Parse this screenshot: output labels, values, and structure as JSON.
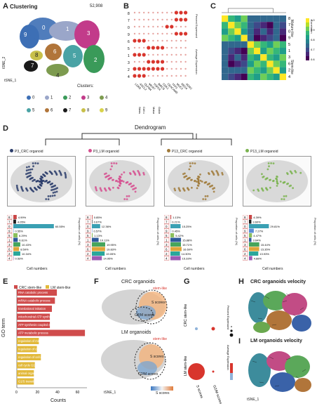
{
  "panelA": {
    "letter": "A",
    "title": "Clustering",
    "count": "52,908",
    "xaxis": "tSNE_1",
    "yaxis": "tSNE_2",
    "legend_title": "Clusters:",
    "clusters": [
      {
        "id": "0",
        "color": "#3d6fb5"
      },
      {
        "id": "1",
        "color": "#9aa6c9"
      },
      {
        "id": "2",
        "color": "#3a9a59"
      },
      {
        "id": "3",
        "color": "#c23b8a"
      },
      {
        "id": "4",
        "color": "#7d9b4f"
      },
      {
        "id": "5",
        "color": "#4aa3a5"
      },
      {
        "id": "6",
        "color": "#b1753a"
      },
      {
        "id": "7",
        "color": "#1a1a1a"
      },
      {
        "id": "8",
        "color": "#c8c04a"
      },
      {
        "id": "9",
        "color": "#d9d34a"
      }
    ]
  },
  "panelB": {
    "letter": "B",
    "rows": [
      "8",
      "7",
      "0",
      "9",
      "6",
      "5",
      "1",
      "3",
      "2",
      "4"
    ],
    "genes": [
      "LGR5",
      "ASCL2",
      "OLFM4",
      "MKI67",
      "TOP2A",
      "BIRC5",
      "CDK1",
      "CEACAM5",
      "TFF3",
      "MUC2",
      "REG4",
      "AGR2"
    ],
    "groups": [
      "Stem/TA-like",
      "Cell cycle",
      "Mature enterocyte",
      "Goblet cell"
    ],
    "legend_pct": "Percent Expressed",
    "legend_avg": "Average Expression"
  },
  "panelC": {
    "letter": "C",
    "rows": [
      "8",
      "7",
      "0",
      "9",
      "5",
      "1",
      "3",
      "6",
      "2",
      "4"
    ],
    "groups": [
      "Mature-like",
      "Stem-like"
    ],
    "scale_label": "Correlation",
    "scale_ticks": [
      "1.0",
      "0.9",
      "0.8",
      "0.7",
      "0.6"
    ]
  },
  "panelD": {
    "letter": "D",
    "title": "Dendrogram",
    "samples": [
      {
        "name": "P3_CRC organoid",
        "color": "#2b3d6b"
      },
      {
        "name": "P3_LM organoid",
        "color": "#d64f8f"
      },
      {
        "name": "P13_CRC organoid",
        "color": "#a07a3a"
      },
      {
        "name": "P13_LM organoid",
        "color": "#7ab34f"
      }
    ],
    "umap_x": "tSNE_1",
    "umap_y": "tSNE_2",
    "bar_xlabel": "Cell numbers",
    "bar_ylabel": "Proportion of cells (%)",
    "bars": [
      {
        "labels": [
          "4.99%",
          "4.05%",
          "60.55%",
          "0.55%",
          "6.29%",
          "6.61%",
          "10.43%",
          "8.59%",
          "10.34%",
          "0.53%"
        ],
        "values": [
          4.99,
          4.05,
          60.55,
          0.55,
          6.29,
          6.61,
          10.43,
          8.59,
          10.34,
          0.53
        ]
      },
      {
        "labels": [
          "0.85%",
          "0.67%",
          "12.36%",
          "0.57%",
          "1.13%",
          "10.11%",
          "19.95%",
          "19.83%",
          "19.05%",
          "14.95%"
        ],
        "values": [
          0.85,
          0.67,
          12.36,
          0.57,
          1.13,
          10.11,
          19.95,
          19.83,
          19.05,
          14.95
        ]
      },
      {
        "labels": [
          "1.13%",
          "0.21%",
          "15.25%",
          "0.45%",
          "5.42%",
          "15.88%",
          "15.71%",
          "16.69%",
          "14.30%",
          "15.33%"
        ],
        "values": [
          1.13,
          0.21,
          15.25,
          0.45,
          5.42,
          15.88,
          15.71,
          16.69,
          14.3,
          15.33
        ]
      },
      {
        "labels": [
          "4.39%",
          "3.60%",
          "29.81%",
          "7.27%",
          "4.47%",
          "3.64%",
          "15.44%",
          "15.35%",
          "13.93%",
          "4.88%"
        ],
        "values": [
          4.39,
          3.6,
          29.81,
          7.27,
          4.47,
          3.64,
          15.44,
          15.35,
          13.93,
          4.88
        ]
      }
    ],
    "bar_rows": [
      "8",
      "7",
      "0",
      "9",
      "5",
      "1",
      "3",
      "6",
      "2",
      "4"
    ]
  },
  "panelE": {
    "letter": "E",
    "legend": [
      {
        "label": "CRC stem-like",
        "color": "#d04c4c"
      },
      {
        "label": "LM stem-like",
        "color": "#e2b93b"
      }
    ],
    "ylabel": "GO term",
    "xlabel": "Counts",
    "xticks": [
      "0",
      "20",
      "40",
      "60"
    ],
    "terms": [
      {
        "label": "RNA catabolic process",
        "value": 40,
        "group": 0
      },
      {
        "label": "mRNA catabolic process",
        "value": 38,
        "group": 0
      },
      {
        "label": "translational initiation",
        "value": 35,
        "group": 0
      },
      {
        "label": "mitochondrial ATP synthesis coupled electron transport",
        "value": 33,
        "group": 0
      },
      {
        "label": "ATP synthesis coupled electron transport",
        "value": 33,
        "group": 0
      },
      {
        "label": "ATP metabolic process",
        "value": 68,
        "group": 0
      },
      {
        "label": "regulation of mitotic cell cycle phase transition",
        "value": 22,
        "group": 1
      },
      {
        "label": "regulation of cell cycle G2/M phase transition",
        "value": 20,
        "group": 1
      },
      {
        "label": "regulation of cell cycle phase transition",
        "value": 24,
        "group": 1
      },
      {
        "label": "cell cycle G1/S phase transition",
        "value": 18,
        "group": 1
      },
      {
        "label": "animal organ regeneration",
        "value": 17,
        "group": 1
      },
      {
        "label": "G1/S transition of mitotic cell cycle",
        "value": 17,
        "group": 1
      }
    ]
  },
  "panelF": {
    "letter": "F",
    "title1": "CRC organoids",
    "title2": "LM organoids",
    "stem_label": "stem-like",
    "s_label": "S scores",
    "g2m_label": "G2/M scores",
    "scale_label": "S scores",
    "xaxis": "tSNE_1",
    "yaxis": "tSNE_2"
  },
  "panelG": {
    "letter": "G",
    "rows": [
      "CRC stem-like",
      "LM stem-like"
    ],
    "cols": [
      "S scores",
      "G2/M scores"
    ],
    "legend_pct": "Percent Expressed",
    "legend_avg": "Average Expression"
  },
  "panelH": {
    "letter": "H",
    "title": "CRC organoids velocity"
  },
  "panelI": {
    "letter": "I",
    "title": "LM organoids velocity",
    "xaxis": "tSNE_1",
    "yaxis": "tSNE_2"
  }
}
